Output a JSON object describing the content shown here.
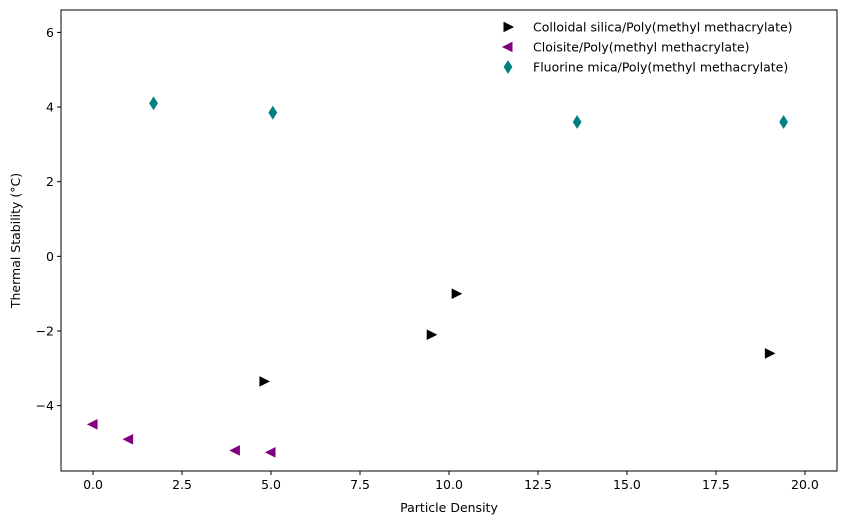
{
  "chart_data": {
    "type": "scatter",
    "title": "",
    "xlabel": "Particle Density",
    "ylabel": "Thermal Stability (°C)",
    "xlim": [
      -0.9,
      20.9
    ],
    "ylim": [
      -5.75,
      6.6
    ],
    "xticks": [
      0.0,
      2.5,
      5.0,
      7.5,
      10.0,
      12.5,
      15.0,
      17.5,
      20.0
    ],
    "xtick_labels": [
      "0.0",
      "2.5",
      "5.0",
      "7.5",
      "10.0",
      "12.5",
      "15.0",
      "17.5",
      "20.0"
    ],
    "yticks": [
      -4,
      -2,
      0,
      2,
      4,
      6
    ],
    "ytick_labels": [
      "−4",
      "−2",
      "0",
      "2",
      "4",
      "6"
    ],
    "grid": false,
    "legend_position": "top-right",
    "series": [
      {
        "name": "Colloidal silica/Poly(methyl methacrylate)",
        "color": "#000000",
        "marker": "triangle-right",
        "x": [
          4.8,
          9.5,
          10.2,
          19.0
        ],
        "y": [
          -3.35,
          -2.1,
          -1.0,
          -2.6
        ]
      },
      {
        "name": "Cloisite/Poly(methyl methacrylate)",
        "color": "#800080",
        "marker": "triangle-left",
        "x": [
          0.0,
          1.0,
          4.0,
          5.0
        ],
        "y": [
          -4.5,
          -4.9,
          -5.2,
          -5.25
        ]
      },
      {
        "name": "Fluorine mica/Poly(methyl methacrylate)",
        "color": "#008080",
        "marker": "diamond",
        "x": [
          1.7,
          5.05,
          13.6,
          19.4
        ],
        "y": [
          4.1,
          3.85,
          3.6,
          3.6
        ]
      }
    ]
  }
}
